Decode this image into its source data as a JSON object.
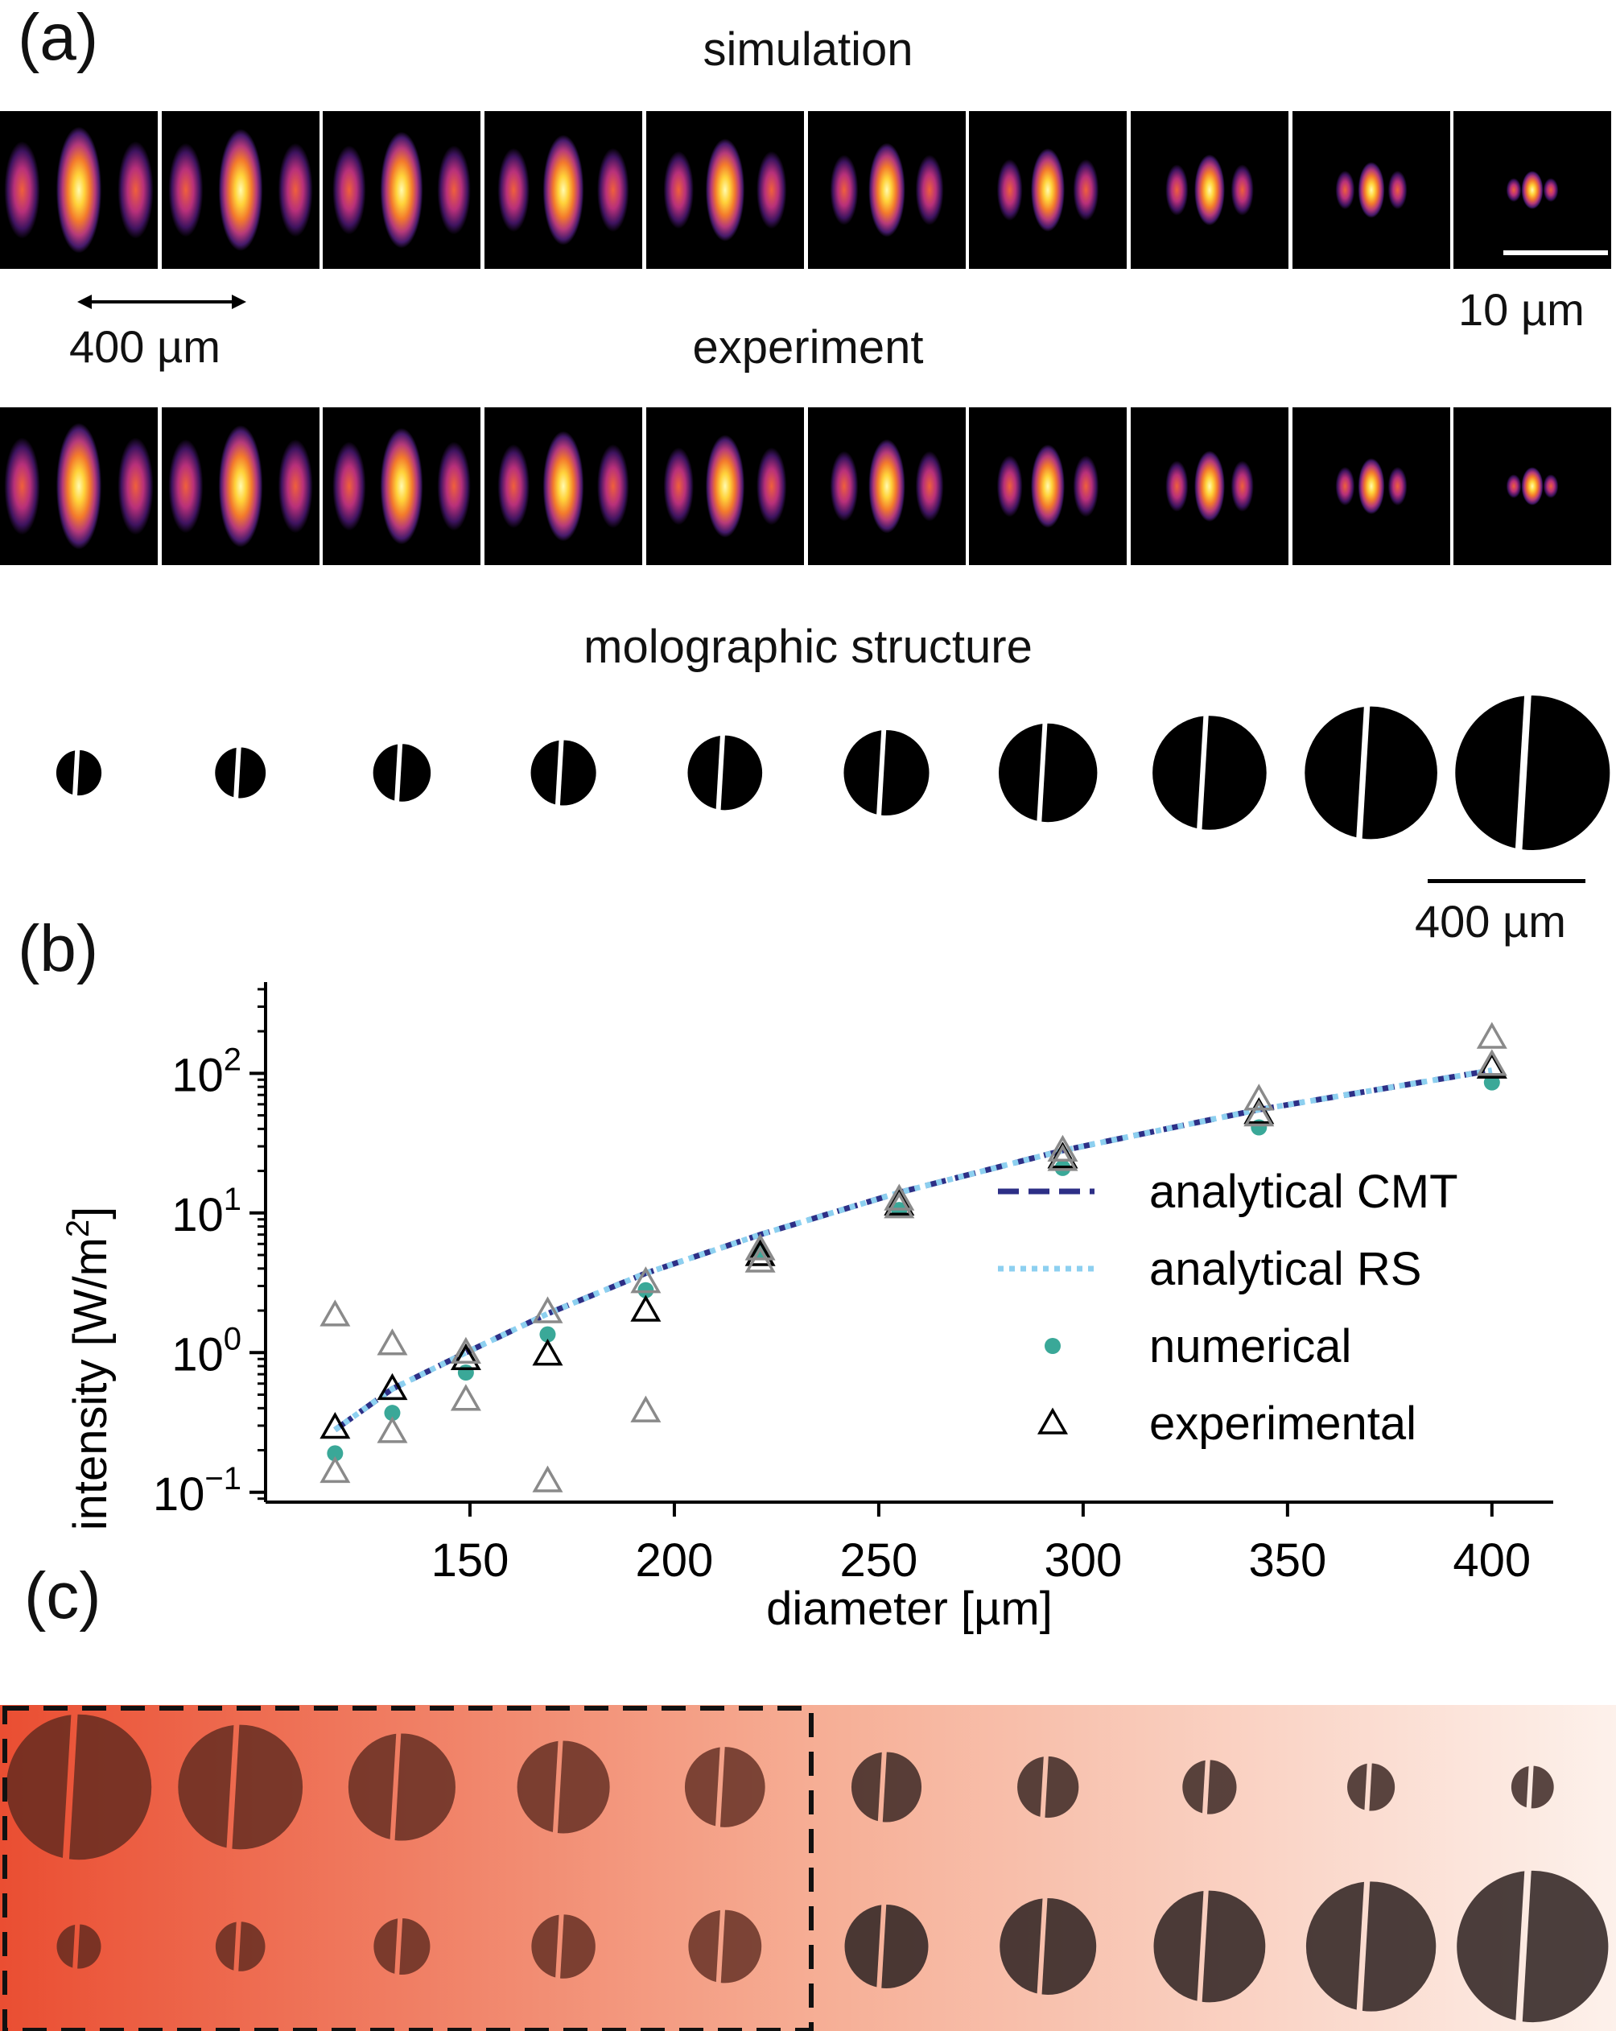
{
  "panels": {
    "a": "(a)",
    "b": "(b)",
    "c": "(c)"
  },
  "rows": {
    "simulation_title": "simulation",
    "experiment_title": "experiment",
    "structure_title": "molographic structure"
  },
  "scalebars": {
    "focal_spot": "10 µm",
    "tile_width": "400 µm",
    "structure": "400 µm"
  },
  "structures": {
    "diameters_um": [
      117,
      131,
      149,
      169,
      193,
      221,
      255,
      295,
      343,
      400
    ]
  },
  "colors": {
    "cmt": "#2d2f86",
    "rs": "#8dd0f0",
    "numerical": "#3aa898",
    "experimental": "#000000",
    "experimental_replicate": "#8a8a8a",
    "gradient_left": "#ea4e32",
    "gradient_right": "#fdf1eb"
  },
  "chart_data": {
    "type": "scatter",
    "xlabel": "diameter [µm]",
    "ylabel": "intensity [W/m²]",
    "xscale": "linear",
    "yscale": "log",
    "xlim": [
      100,
      415
    ],
    "ylim": [
      0.085,
      450
    ],
    "xticks": [
      150,
      200,
      250,
      300,
      350,
      400
    ],
    "xtick_labels": [
      "150",
      "200",
      "250",
      "300",
      "350",
      "400"
    ],
    "yticks": [
      0.1,
      1,
      10,
      100
    ],
    "ytick_labels": [
      {
        "base": "10",
        "exp": "−1"
      },
      {
        "base": "10",
        "exp": "0"
      },
      {
        "base": "10",
        "exp": "1"
      },
      {
        "base": "10",
        "exp": "2"
      }
    ],
    "legend_position": "center-right",
    "series": [
      {
        "name": "analytical CMT",
        "kind": "line",
        "style": "dashed",
        "x": [
          117,
          131,
          149,
          169,
          193,
          221,
          255,
          295,
          343,
          400
        ],
        "y": [
          0.28,
          0.55,
          1.0,
          1.9,
          3.7,
          7.0,
          14,
          28,
          55,
          105
        ]
      },
      {
        "name": "analytical RS",
        "kind": "line",
        "style": "dotted",
        "x": [
          117,
          131,
          149,
          169,
          193,
          221,
          255,
          295,
          343,
          400
        ],
        "y": [
          0.28,
          0.55,
          1.0,
          1.9,
          3.7,
          7.0,
          14,
          28,
          55,
          105
        ]
      },
      {
        "name": "numerical",
        "kind": "marker",
        "marker": "circle",
        "x": [
          117,
          131,
          149,
          169,
          193,
          221,
          255,
          295,
          343,
          400
        ],
        "y": [
          0.19,
          0.37,
          0.72,
          1.35,
          2.8,
          5.3,
          10.5,
          21,
          41,
          86
        ]
      },
      {
        "name": "experimental",
        "kind": "marker",
        "marker": "triangle",
        "x": [
          117,
          131,
          149,
          169,
          193,
          221,
          255,
          295,
          343,
          400
        ],
        "y": [
          0.29,
          0.55,
          0.9,
          0.97,
          2.0,
          5.0,
          11.5,
          25,
          52,
          110
        ]
      },
      {
        "name": "experimental (replicates)",
        "kind": "marker",
        "marker": "triangle",
        "in_legend": false,
        "x": [
          117,
          117,
          131,
          131,
          149,
          149,
          169,
          169,
          193,
          193,
          221,
          221,
          255,
          255,
          295,
          295,
          343,
          343,
          400,
          400
        ],
        "y": [
          1.85,
          0.14,
          1.15,
          0.27,
          1.0,
          0.46,
          1.95,
          0.12,
          3.2,
          0.38,
          5.5,
          4.5,
          12.5,
          11.0,
          28,
          24,
          65,
          50,
          180,
          115
        ]
      }
    ]
  }
}
